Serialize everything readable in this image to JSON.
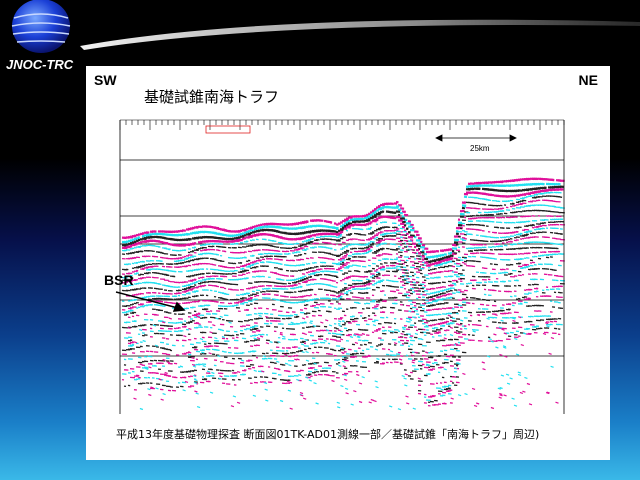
{
  "logo": {
    "text": "JNOC-TRC"
  },
  "figure": {
    "direction_left": "SW",
    "direction_right": "NE",
    "title": "基礎試錐南海トラフ",
    "bsr_label": "BSR",
    "scale_label": "25km",
    "caption": "平成13年度基礎物理探査 断面図01TK-AD01測線一部／基礎試錐「南海トラフ」周辺)"
  },
  "colors": {
    "magenta": "#e0109a",
    "cyan": "#22e0f0",
    "slide_top": "#000000",
    "slide_bottom": "#3ab8e8"
  }
}
